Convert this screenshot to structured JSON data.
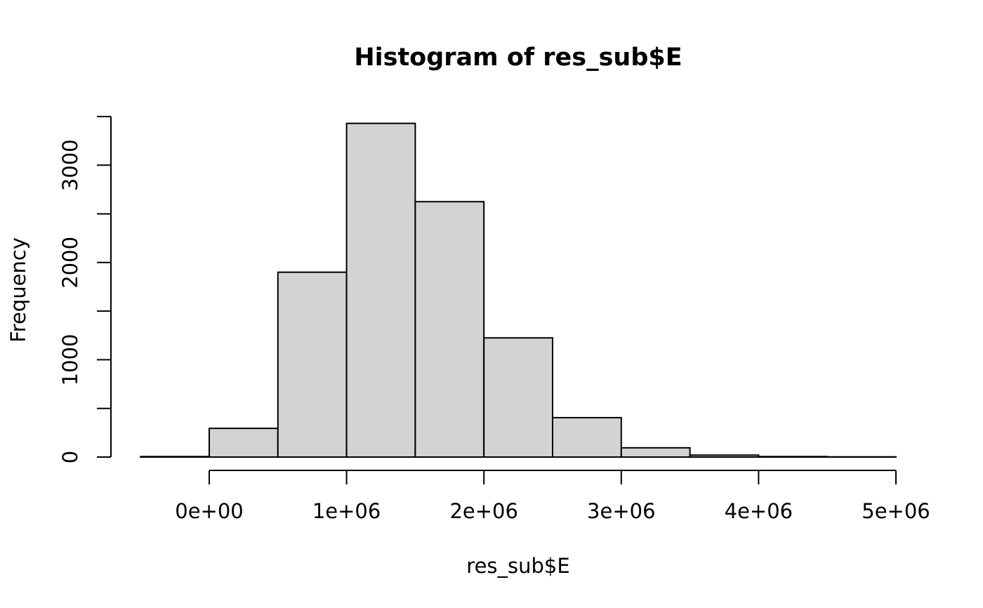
{
  "chart_data": {
    "type": "bar",
    "title": "Histogram of res_sub$E",
    "xlabel": "res_sub$E",
    "ylabel": "Frequency",
    "bin_edges": [
      -500000,
      0,
      500000,
      1000000,
      1500000,
      2000000,
      2500000,
      3000000,
      3500000,
      4000000,
      4500000,
      5000000
    ],
    "values": [
      5,
      295,
      1900,
      3430,
      2625,
      1225,
      405,
      95,
      20,
      5,
      2
    ],
    "xlim": [
      -500000,
      5000000
    ],
    "ylim": [
      0,
      3500
    ],
    "x_ticks": [
      0,
      1000000,
      2000000,
      3000000,
      4000000,
      5000000
    ],
    "x_tick_labels": [
      "0e+00",
      "1e+06",
      "2e+06",
      "3e+06",
      "4e+06",
      "5e+06"
    ],
    "y_ticks": [
      0,
      500,
      1000,
      1500,
      2000,
      2500,
      3000,
      3500
    ],
    "y_tick_labels": [
      "0",
      "1000",
      "2000",
      "3000"
    ],
    "y_labeled_ticks": [
      0,
      1000,
      2000,
      3000
    ],
    "bar_color": "#d3d3d3",
    "edge_color": "#000000",
    "grid": false,
    "legend": "none"
  }
}
